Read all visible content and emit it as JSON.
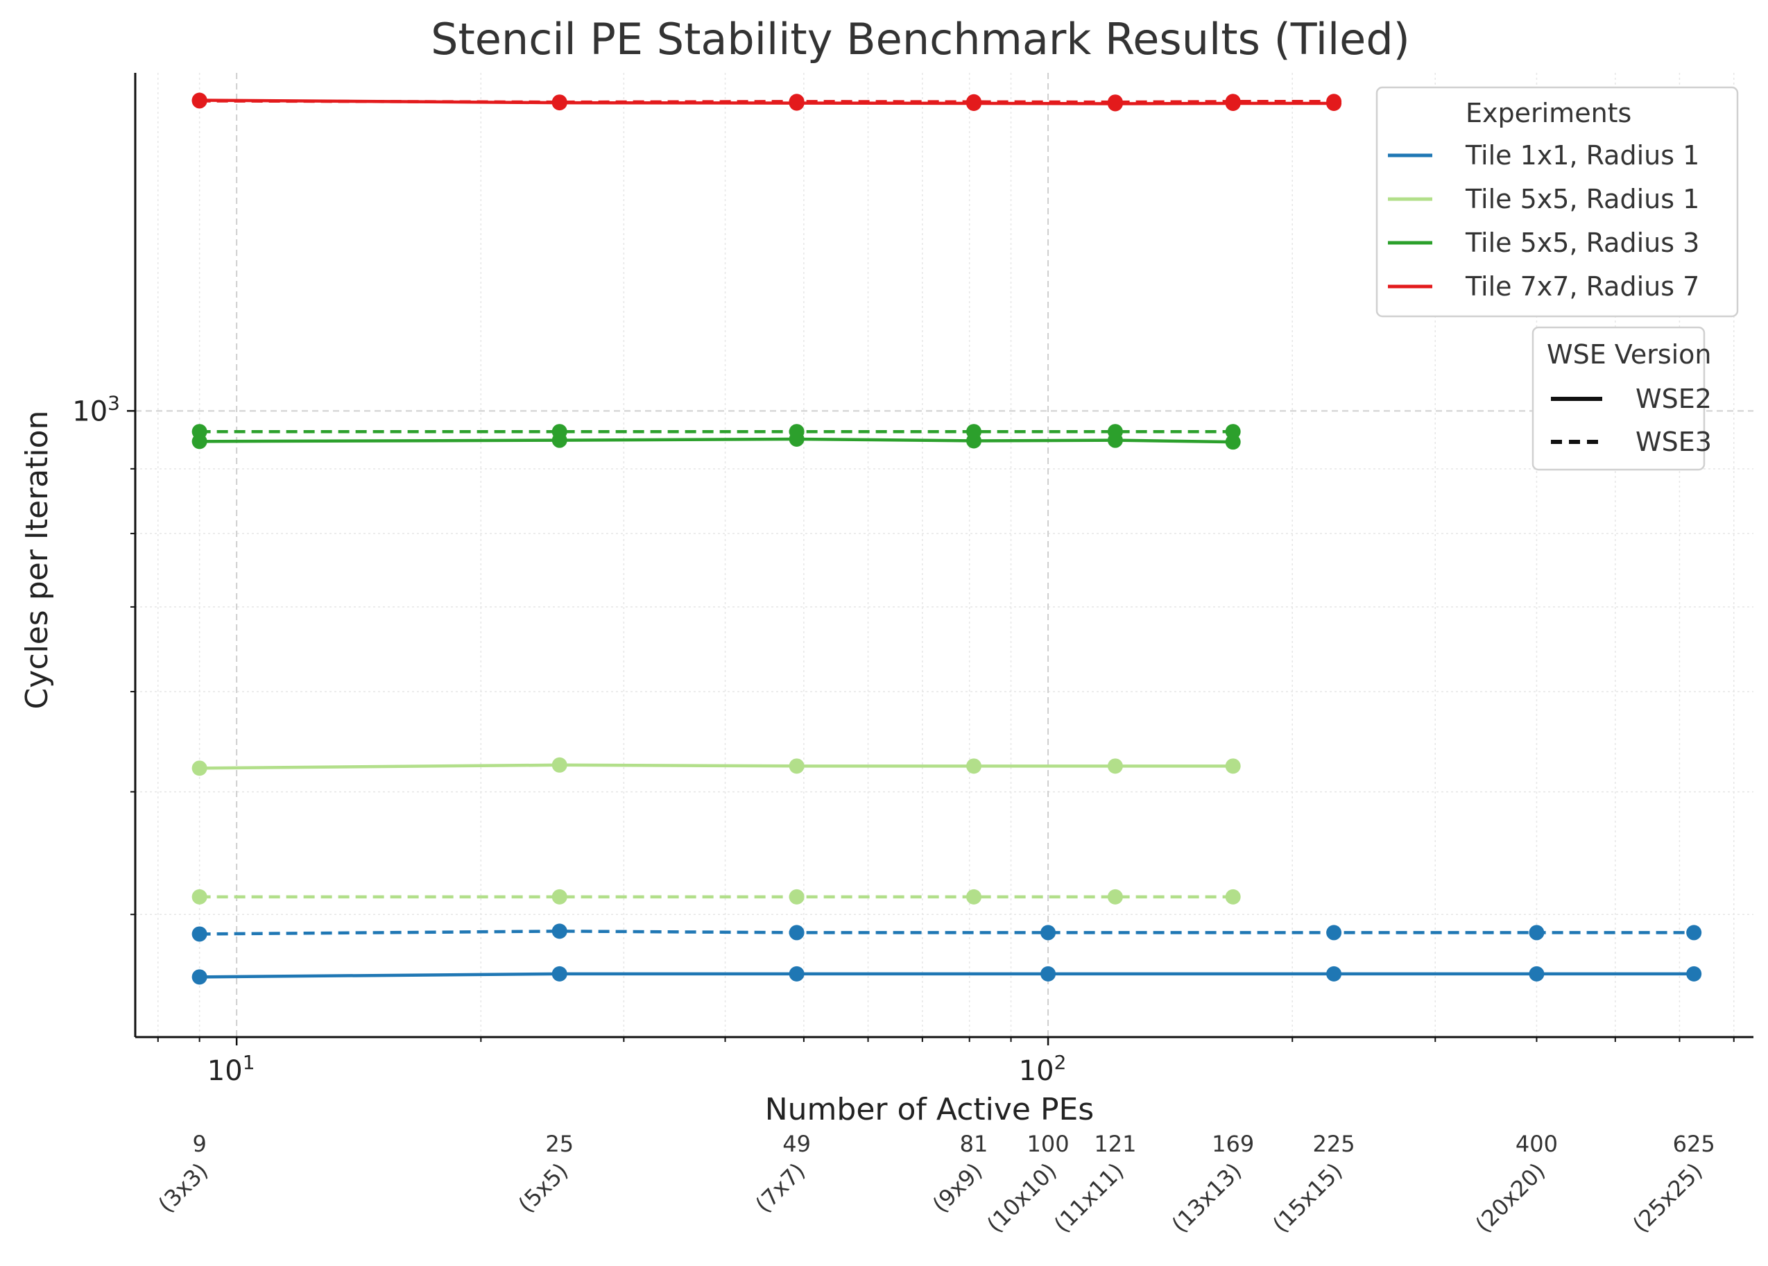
{
  "chart_data": {
    "type": "line",
    "title": "Stencil PE Stability Benchmark Results (Tiled)",
    "xlabel": "Number of Active PEs",
    "ylabel": "Cycles per Iteration",
    "xscale": "log",
    "yscale": "log",
    "xlim": [
      7.5,
      740
    ],
    "ylim": [
      320,
      1850
    ],
    "grid": true,
    "x_major_ticks": [
      {
        "value": 10,
        "base": "10",
        "exp": "1"
      },
      {
        "value": 100,
        "base": "10",
        "exp": "2"
      }
    ],
    "y_major_ticks": [
      {
        "value": 1000,
        "base": "10",
        "exp": "3"
      }
    ],
    "pe_annotations": [
      {
        "count": "9",
        "grid": "(3x3)"
      },
      {
        "count": "25",
        "grid": "(5x5)"
      },
      {
        "count": "49",
        "grid": "(7x7)"
      },
      {
        "count": "81",
        "grid": "(9x9)"
      },
      {
        "count": "100",
        "grid": "(10x10)"
      },
      {
        "count": "121",
        "grid": "(11x11)"
      },
      {
        "count": "169",
        "grid": "(13x13)"
      },
      {
        "count": "225",
        "grid": "(15x15)"
      },
      {
        "count": "400",
        "grid": "(20x20)"
      },
      {
        "count": "625",
        "grid": "(25x25)"
      }
    ],
    "series": [
      {
        "experiment": "Tile 1x1, Radius 1",
        "version": "WSE2",
        "color": "#1f77b4",
        "x": [
          9,
          25,
          49,
          100,
          225,
          400,
          625
        ],
        "y": [
          357,
          359,
          359,
          359,
          359,
          359,
          359
        ]
      },
      {
        "experiment": "Tile 1x1, Radius 1",
        "version": "WSE3",
        "color": "#1f77b4",
        "x": [
          9,
          25,
          49,
          100,
          225,
          400,
          625
        ],
        "y": [
          386,
          388,
          387,
          387,
          387,
          387,
          387
        ]
      },
      {
        "experiment": "Tile 5x5, Radius 1",
        "version": "WSE2",
        "color": "#b2df8a",
        "x": [
          9,
          25,
          49,
          81,
          121,
          169
        ],
        "y": [
          522,
          525,
          524,
          524,
          524,
          524
        ]
      },
      {
        "experiment": "Tile 5x5, Radius 1",
        "version": "WSE3",
        "color": "#b2df8a",
        "x": [
          9,
          25,
          49,
          81,
          121,
          169
        ],
        "y": [
          413,
          413,
          413,
          413,
          413,
          413
        ]
      },
      {
        "experiment": "Tile 5x5, Radius 3",
        "version": "WSE2",
        "color": "#2ca02c",
        "x": [
          9,
          25,
          49,
          81,
          121,
          169
        ],
        "y": [
          946,
          948,
          950,
          947,
          948,
          945
        ]
      },
      {
        "experiment": "Tile 5x5, Radius 3",
        "version": "WSE3",
        "color": "#2ca02c",
        "x": [
          9,
          25,
          49,
          81,
          121,
          169
        ],
        "y": [
          963,
          963,
          963,
          963,
          963,
          963
        ]
      },
      {
        "experiment": "Tile 7x7, Radius 7",
        "version": "WSE2",
        "color": "#e31a1c",
        "x": [
          9,
          25,
          49,
          81,
          121,
          169,
          225
        ],
        "y": [
          1760,
          1752,
          1751,
          1750,
          1749,
          1750,
          1750
        ]
      },
      {
        "experiment": "Tile 7x7, Radius 7",
        "version": "WSE3",
        "color": "#e31a1c",
        "x": [
          9,
          25,
          49,
          81,
          121,
          169,
          225
        ],
        "y": [
          1758,
          1754,
          1756,
          1755,
          1754,
          1756,
          1756
        ]
      }
    ],
    "legend_experiments": {
      "title": "Experiments",
      "placement": "top-right",
      "entries": [
        {
          "label": "Tile 1x1, Radius 1",
          "color": "#1f77b4"
        },
        {
          "label": "Tile 5x5, Radius 1",
          "color": "#b2df8a"
        },
        {
          "label": "Tile 5x5, Radius 3",
          "color": "#2ca02c"
        },
        {
          "label": "Tile 7x7, Radius 7",
          "color": "#e31a1c"
        }
      ]
    },
    "legend_versions": {
      "title": "WSE Version",
      "placement": "right",
      "entries": [
        {
          "label": "WSE2",
          "style": "solid"
        },
        {
          "label": "WSE3",
          "style": "dashed"
        }
      ]
    }
  }
}
